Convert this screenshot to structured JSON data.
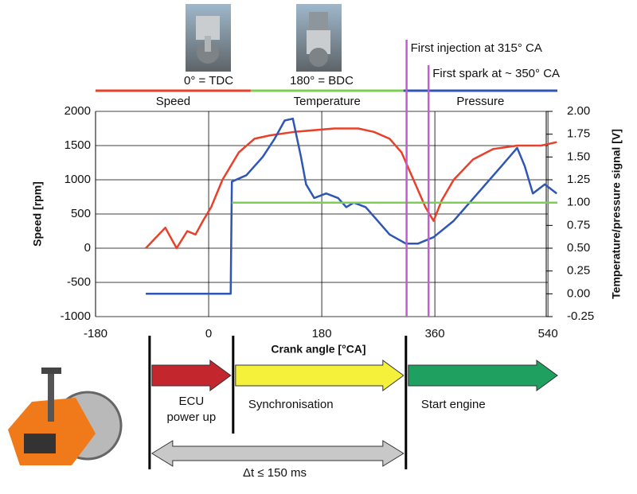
{
  "chart_data": {
    "type": "line",
    "xlabel": "Crank angle [°CA]",
    "ylabel": "Speed [rpm]",
    "y2label": "Temperature/pressure signal [V]",
    "xlim": [
      -180,
      555
    ],
    "xticks": [
      -180,
      0,
      180,
      360,
      540
    ],
    "ylim": [
      -1000,
      2000
    ],
    "yticks": [
      -1000,
      -500,
      0,
      500,
      1000,
      1500,
      2000
    ],
    "y2lim": [
      -0.25,
      2.0
    ],
    "y2ticks": [
      {
        "value": -0.25,
        "label": "-0.25"
      },
      {
        "value": 0,
        "label": "0.00"
      },
      {
        "value": 0.25,
        "label": "0.25"
      },
      {
        "value": 0.5,
        "label": "0.50"
      },
      {
        "value": 0.75,
        "label": "0.75"
      },
      {
        "value": 1,
        "label": "1.00"
      },
      {
        "value": 1.25,
        "label": "1.25"
      },
      {
        "value": 1.5,
        "label": "1.50"
      },
      {
        "value": 1.75,
        "label": "1.75"
      },
      {
        "value": 2,
        "label": "2.00"
      }
    ],
    "grid": true,
    "series": [
      {
        "color": "#e8402a",
        "axis": "y",
        "x": [
          -100,
          -69,
          -51,
          -34,
          -21,
          -9,
          4,
          22,
          48,
          73,
          98,
          136,
          200,
          238,
          263,
          288,
          307,
          326,
          345,
          358,
          371,
          390,
          421,
          453,
          491,
          529,
          554
        ],
        "values": [
          0,
          300,
          0,
          250,
          200,
          400,
          600,
          1000,
          1400,
          1600,
          1650,
          1700,
          1750,
          1750,
          1700,
          1600,
          1400,
          1000,
          600,
          400,
          700,
          1000,
          1300,
          1450,
          1500,
          1500,
          1550
        ]
      },
      {
        "color": "#2f55b5",
        "axis": "y2",
        "x": [
          -100,
          35,
          37,
          60,
          86,
          105,
          121,
          134,
          147,
          155,
          168,
          187,
          206,
          219,
          231,
          250,
          269,
          288,
          314,
          333,
          358,
          390,
          428,
          466,
          491,
          503,
          516,
          535,
          554
        ],
        "values": [
          0,
          0,
          1.23,
          1.3,
          1.5,
          1.7,
          1.9,
          1.92,
          1.5,
          1.2,
          1.05,
          1.1,
          1.05,
          0.95,
          1.0,
          0.95,
          0.8,
          0.65,
          0.55,
          0.55,
          0.62,
          0.8,
          1.1,
          1.4,
          1.6,
          1.4,
          1.1,
          1.2,
          1.1
        ]
      },
      {
        "color": "#7ccf52",
        "axis": "y2",
        "x": [
          37,
          555
        ],
        "values": [
          1.0,
          1.0
        ]
      }
    ],
    "phases": [
      {
        "name": "Speed",
        "color": "#e8402a",
        "range": [
          -180,
          67
        ]
      },
      {
        "name": "Temperature",
        "color": "#7ccf52",
        "range": [
          67,
          310
        ]
      },
      {
        "name": "Pressure",
        "color": "#2f55b5",
        "range": [
          310,
          555
        ]
      }
    ],
    "angle_labels": [
      {
        "text": "0° = TDC",
        "x": 0
      },
      {
        "text": "180° = BDC",
        "x": 180
      }
    ],
    "markers": [
      {
        "label": "First injection at 315° CA",
        "x": 315,
        "color": "#c45ad6"
      },
      {
        "label": "First spark at ~ 350° CA",
        "x": 350,
        "color": "#c45ad6"
      }
    ],
    "process": {
      "boundaries": [
        -94,
        39,
        314
      ],
      "steps": [
        {
          "lines": [
            "ECU",
            "power up"
          ],
          "color": "#c4262e"
        },
        {
          "lines": [
            "Synchronisation"
          ],
          "color": "#f5f03a"
        },
        {
          "lines": [
            "Start engine"
          ],
          "color": "#1fa060"
        }
      ],
      "duration": "Δt ≤ 150 ms"
    }
  }
}
